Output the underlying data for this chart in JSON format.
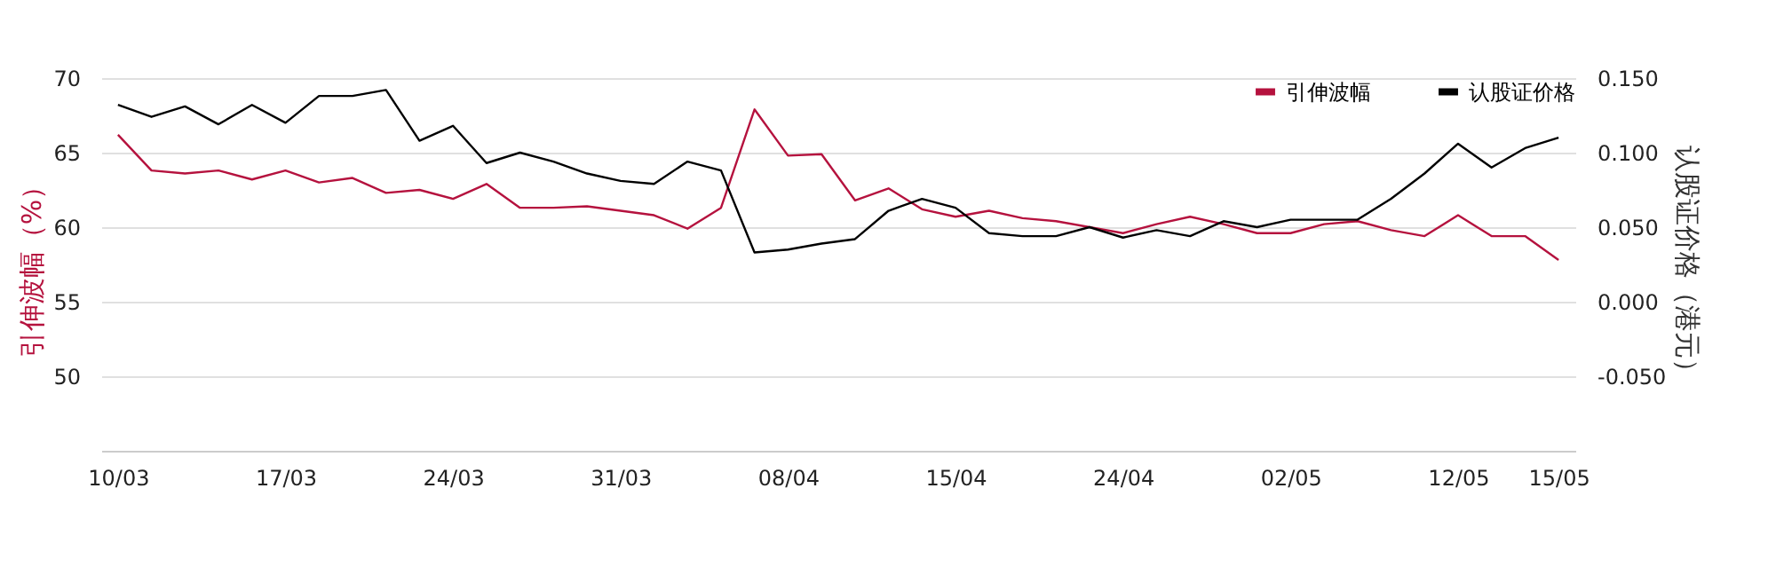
{
  "chart_data": {
    "type": "line",
    "ylabel": "引伸波幅（%）",
    "y2label": "认股证价格（港元）",
    "categories": [
      "10/03",
      null,
      null,
      null,
      null,
      "17/03",
      null,
      null,
      null,
      null,
      "24/03",
      null,
      null,
      null,
      null,
      "31/03",
      null,
      null,
      null,
      null,
      "08/04",
      null,
      null,
      null,
      null,
      "15/04",
      null,
      null,
      null,
      null,
      "24/04",
      null,
      null,
      null,
      null,
      "02/05",
      null,
      null,
      null,
      null,
      "12/05",
      null,
      null,
      "15/05"
    ],
    "series": [
      {
        "name": "引伸波幅",
        "color": "#b5123e",
        "values": [
          66.2,
          63.8,
          63.6,
          63.8,
          63.2,
          63.8,
          63.0,
          63.3,
          62.3,
          62.5,
          61.9,
          62.9,
          61.3,
          61.3,
          61.4,
          61.1,
          60.8,
          59.9,
          61.3,
          67.9,
          64.8,
          64.9,
          61.8,
          62.6,
          61.2,
          60.7,
          61.1,
          60.6,
          60.4,
          60.0,
          59.6,
          60.2,
          60.7,
          60.2,
          59.6,
          59.6,
          60.2,
          60.4,
          59.8,
          59.4,
          60.8,
          59.4,
          59.4,
          57.8
        ]
      },
      {
        "name": "认股证价格",
        "color": "#000000",
        "axis": "y2",
        "values": [
          0.132,
          0.124,
          0.131,
          0.119,
          0.132,
          0.12,
          0.138,
          0.138,
          0.142,
          0.108,
          0.118,
          0.093,
          0.1,
          0.094,
          0.086,
          0.081,
          0.079,
          0.094,
          0.088,
          0.033,
          0.035,
          0.039,
          0.042,
          0.061,
          0.069,
          0.063,
          0.046,
          0.044,
          0.044,
          0.05,
          0.043,
          0.048,
          0.044,
          0.054,
          0.05,
          0.055,
          0.055,
          0.055,
          0.069,
          0.086,
          0.106,
          0.09,
          0.103,
          0.11
        ]
      }
    ],
    "ylim": [
      45,
      70
    ],
    "yticks": [
      50,
      55,
      60,
      65,
      70
    ],
    "y2lim": [
      -0.1,
      0.15
    ],
    "y2ticks": [
      {
        "value": -0.05,
        "label": "-0.050"
      },
      {
        "value": 0,
        "label": "0.000"
      },
      {
        "value": 0.05,
        "label": "0.050"
      },
      {
        "value": 0.1,
        "label": "0.100"
      },
      {
        "value": 0.15,
        "label": "0.150"
      }
    ],
    "grid": "y",
    "legend": "top right",
    "marker": "none",
    "line_style": "solid"
  }
}
